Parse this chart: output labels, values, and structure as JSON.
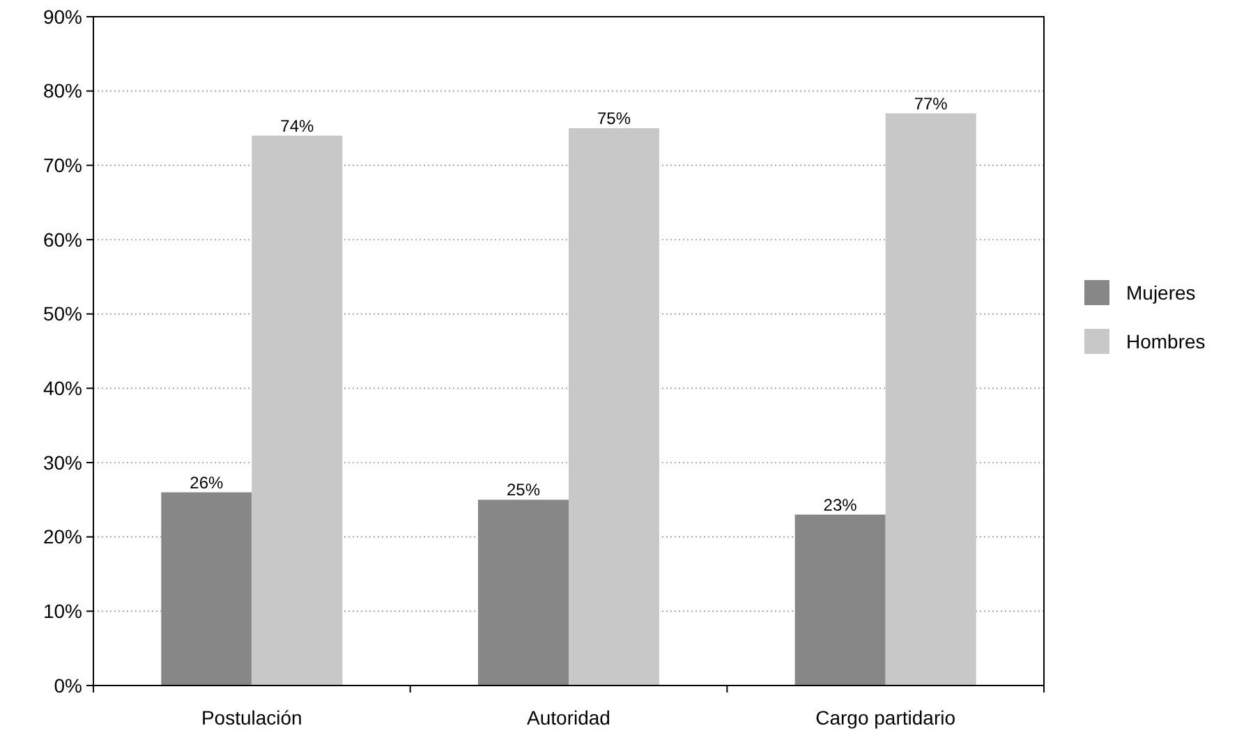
{
  "chart_data": {
    "type": "bar",
    "categories": [
      "Postulación",
      "Autoridad",
      "Cargo partidario"
    ],
    "series": [
      {
        "name": "Mujeres",
        "color": "#878787",
        "values": [
          26,
          25,
          23
        ],
        "value_labels": [
          "26%",
          "25%",
          "23%"
        ]
      },
      {
        "name": "Hombres",
        "color": "#c8c8c8",
        "values": [
          74,
          75,
          77
        ],
        "value_labels": [
          "74%",
          "75%",
          "77%"
        ]
      }
    ],
    "ylim": [
      0,
      90
    ],
    "yticks": [
      {
        "value": 0,
        "label": "0%"
      },
      {
        "value": 10,
        "label": "10%"
      },
      {
        "value": 20,
        "label": "20%"
      },
      {
        "value": 30,
        "label": "30%"
      },
      {
        "value": 40,
        "label": "40%"
      },
      {
        "value": 50,
        "label": "50%"
      },
      {
        "value": 60,
        "label": "60%"
      },
      {
        "value": 70,
        "label": "70%"
      },
      {
        "value": 80,
        "label": "80%"
      },
      {
        "value": 90,
        "label": "90%"
      }
    ],
    "grid": "y",
    "legend": "right"
  }
}
